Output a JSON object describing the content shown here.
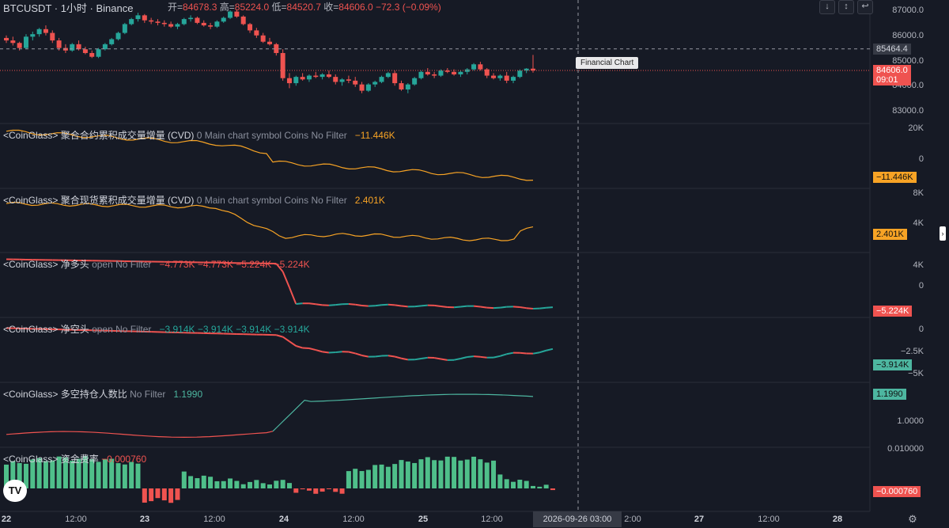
{
  "header": {
    "symbol": "BTCUSDT · 1小时 · Binance",
    "open_label": "开=",
    "open": "84678.3",
    "high_label": "高=",
    "high": "85224.0",
    "low_label": "低=",
    "low": "84520.7",
    "close_label": "收=",
    "close": "84606.0",
    "change": "−72.3 (−0.09%)",
    "buttons": [
      "↓",
      "↕",
      "↩"
    ]
  },
  "tooltip": "Financial Chart",
  "crosshair_time": "2026-09-26   03:00",
  "colors": {
    "up": "#26a69a",
    "down": "#ef5350",
    "orange": "#f7a325",
    "teal": "#4db6a0",
    "bg": "#161a25"
  },
  "main": {
    "y_ticks": [
      "87000.0",
      "86000.0",
      "85000.0",
      "84000.0",
      "83000.0"
    ],
    "crosshair_price": "85464.4",
    "last_price": "84606.0",
    "countdown": "09:01"
  },
  "panes": [
    {
      "title": "<CoinGlass> 聚合合约累积成交量增量 (CVD)",
      "params": "0 Main chart symbol Coins No Filter",
      "value": "−11.446K",
      "ticks": [
        "20K",
        "0"
      ],
      "badge": "−11.446K"
    },
    {
      "title": "<CoinGlass> 聚合现货累积成交量增量 (CVD)",
      "params": "0 Main chart symbol Coins No Filter",
      "value": "2.401K",
      "ticks": [
        "8K",
        "4K"
      ],
      "badge": "2.401K"
    },
    {
      "title": "<CoinGlass> 净多头",
      "params": "open No Filter",
      "value": "−4.773K  −4.773K  −5.224K  −5.224K",
      "ticks": [
        "4K",
        "0",
        "−4K"
      ],
      "badge": "−5.224K"
    },
    {
      "title": "<CoinGlass> 净空头",
      "params": "open No Filter",
      "value": "−3.914K  −3.914K  −3.914K  −3.914K",
      "ticks": [
        "0",
        "−2.5K",
        "−5K"
      ],
      "badge": "−3.914K"
    },
    {
      "title": "<CoinGlass> 多空持仓人数比",
      "params": "No Filter",
      "value": "1.1990",
      "ticks": [
        "1.0000"
      ],
      "badge": "1.1990"
    },
    {
      "title": "<CoinGlass> 资金费率",
      "params": "",
      "value": "−0.000760",
      "ticks": [
        "0.010000"
      ],
      "badge": "−0.000760"
    }
  ],
  "x_axis": {
    "ticks": [
      "22",
      "12:00",
      "23",
      "12:00",
      "24",
      "12:00",
      "25",
      "12:00",
      "2:00",
      "27",
      "12:00",
      "28"
    ]
  },
  "logo": "TV",
  "chart_data": {
    "type": "candlestick",
    "interval": "1h",
    "ylim": [
      82600,
      87400
    ],
    "candles_ohlc_approx": [
      [
        85900,
        86000,
        85700,
        85800
      ],
      [
        85800,
        85950,
        85600,
        85700
      ],
      [
        85700,
        85750,
        85400,
        85500
      ],
      [
        85500,
        86050,
        85450,
        85950
      ],
      [
        85950,
        86150,
        85800,
        86050
      ],
      [
        86050,
        86300,
        85950,
        86250
      ],
      [
        86250,
        86400,
        86000,
        86100
      ],
      [
        86100,
        86200,
        85700,
        85800
      ],
      [
        85800,
        85900,
        85400,
        85500
      ],
      [
        85500,
        85650,
        85300,
        85400
      ],
      [
        85400,
        85700,
        85350,
        85650
      ],
      [
        85650,
        85800,
        85400,
        85450
      ],
      [
        85450,
        85550,
        85250,
        85300
      ],
      [
        85300,
        85400,
        85100,
        85150
      ],
      [
        85150,
        85500,
        85100,
        85450
      ],
      [
        85450,
        85700,
        85400,
        85650
      ],
      [
        85650,
        85900,
        85600,
        85850
      ],
      [
        85850,
        86150,
        85800,
        86100
      ],
      [
        86100,
        86500,
        86050,
        86450
      ],
      [
        86450,
        86700,
        86400,
        86650
      ],
      [
        86650,
        86900,
        86550,
        86800
      ],
      [
        86800,
        86850,
        86500,
        86600
      ],
      [
        86600,
        86700,
        86450,
        86550
      ],
      [
        86550,
        86650,
        86400,
        86500
      ],
      [
        86500,
        86600,
        86350,
        86450
      ],
      [
        86450,
        86550,
        86300,
        86350
      ],
      [
        86350,
        86500,
        86250,
        86450
      ],
      [
        86450,
        86700,
        86400,
        86650
      ],
      [
        86650,
        86800,
        86550,
        86700
      ],
      [
        86700,
        86750,
        86450,
        86500
      ],
      [
        86500,
        86600,
        86350,
        86400
      ],
      [
        86400,
        86500,
        86250,
        86350
      ],
      [
        86350,
        86600,
        86300,
        86550
      ],
      [
        86550,
        86750,
        86500,
        86700
      ],
      [
        86700,
        87000,
        86650,
        86950
      ],
      [
        86950,
        87000,
        86700,
        86750
      ],
      [
        86750,
        86800,
        86400,
        86450
      ],
      [
        86450,
        86500,
        86100,
        86200
      ],
      [
        86200,
        86300,
        85900,
        86000
      ],
      [
        86000,
        86100,
        85700,
        85750
      ],
      [
        85750,
        85900,
        85600,
        85650
      ],
      [
        85650,
        85700,
        85200,
        85300
      ],
      [
        85300,
        85450,
        84200,
        84300
      ],
      [
        84300,
        84500,
        83900,
        84100
      ],
      [
        84100,
        84400,
        84000,
        84350
      ],
      [
        84350,
        84500,
        84200,
        84250
      ],
      [
        84250,
        84450,
        84150,
        84400
      ],
      [
        84400,
        84550,
        84300,
        84350
      ],
      [
        84350,
        84500,
        84250,
        84450
      ],
      [
        84450,
        84600,
        84300,
        84350
      ],
      [
        84350,
        84450,
        84050,
        84150
      ],
      [
        84150,
        84300,
        84000,
        84250
      ],
      [
        84250,
        84400,
        84100,
        84200
      ],
      [
        84200,
        84350,
        83950,
        84050
      ],
      [
        84050,
        84150,
        83700,
        83800
      ],
      [
        83800,
        84100,
        83750,
        84050
      ],
      [
        84050,
        84200,
        83950,
        84150
      ],
      [
        84150,
        84400,
        84100,
        84350
      ],
      [
        84350,
        84550,
        84300,
        84500
      ],
      [
        84500,
        84600,
        84000,
        84100
      ],
      [
        84100,
        84200,
        83800,
        83850
      ],
      [
        83850,
        84100,
        83700,
        84050
      ],
      [
        84050,
        84350,
        84000,
        84300
      ],
      [
        84300,
        84600,
        84250,
        84550
      ],
      [
        84550,
        84700,
        84400,
        84450
      ],
      [
        84450,
        84550,
        84300,
        84400
      ],
      [
        84400,
        84650,
        84350,
        84600
      ],
      [
        84600,
        84700,
        84500,
        84550
      ],
      [
        84550,
        84650,
        84400,
        84450
      ],
      [
        84450,
        84600,
        84350,
        84550
      ],
      [
        84550,
        84700,
        84450,
        84650
      ],
      [
        84650,
        84900,
        84600,
        84850
      ],
      [
        84850,
        84950,
        84600,
        84650
      ],
      [
        84650,
        84700,
        84300,
        84400
      ],
      [
        84400,
        84500,
        84250,
        84300
      ],
      [
        84300,
        84450,
        84200,
        84400
      ],
      [
        84400,
        84550,
        84100,
        84200
      ],
      [
        84200,
        84400,
        84100,
        84350
      ],
      [
        84350,
        84650,
        84300,
        84600
      ],
      [
        84600,
        84700,
        84500,
        84678
      ],
      [
        84678,
        85224,
        84521,
        84606
      ]
    ]
  }
}
